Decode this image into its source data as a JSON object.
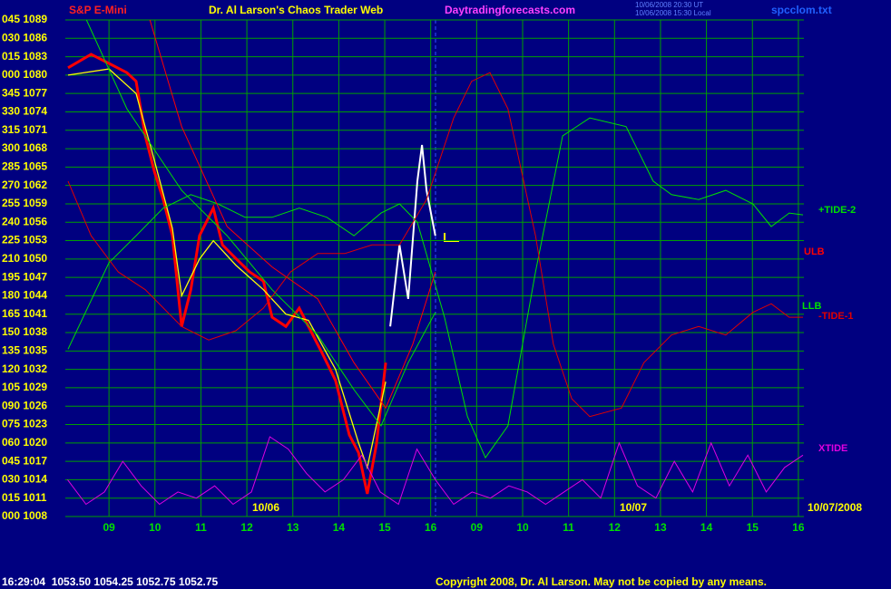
{
  "chart_data": {
    "type": "line",
    "header": {
      "symbol": "S&P E-Mini",
      "title": "Dr. Al Larson's Chaos Trader Web",
      "site": "Daytradingforecasts.com",
      "time_ut": "10/06/2008 20:30 UT",
      "time_local": "10/06/2008 15:30 Local",
      "file": "spcclom.txt"
    },
    "footer": {
      "status": "16:29:04  1053.50 1054.25 1052.75 1052.75",
      "copyright": "Copyright 2008, Dr. Al Larson. May not be copied by any means."
    },
    "annotations": [
      "10/06",
      "10/07",
      "10/07/2008"
    ],
    "grid": true,
    "xlim": [
      -0.95,
      15.12
    ],
    "xticks": [
      {
        "value": 0,
        "label": "09"
      },
      {
        "value": 1,
        "label": "10"
      },
      {
        "value": 2,
        "label": "11"
      },
      {
        "value": 3,
        "label": "12"
      },
      {
        "value": 4,
        "label": "13"
      },
      {
        "value": 5,
        "label": "14"
      },
      {
        "value": 6,
        "label": "15"
      },
      {
        "value": 7,
        "label": "16"
      },
      {
        "value": 8,
        "label": "09"
      },
      {
        "value": 9,
        "label": "10"
      },
      {
        "value": 10,
        "label": "11"
      },
      {
        "value": 11,
        "label": "12"
      },
      {
        "value": 12,
        "label": "13"
      },
      {
        "value": 13,
        "label": "14"
      },
      {
        "value": 14,
        "label": "15"
      },
      {
        "value": 15,
        "label": "16"
      }
    ],
    "ylim": [
      1008,
      1089
    ],
    "yticks": [
      {
        "value": 1008,
        "label": "000 1008"
      },
      {
        "value": 1011,
        "label": "015 1011"
      },
      {
        "value": 1014,
        "label": "030 1014"
      },
      {
        "value": 1017,
        "label": "045 1017"
      },
      {
        "value": 1020,
        "label": "060 1020"
      },
      {
        "value": 1023,
        "label": "075 1023"
      },
      {
        "value": 1026,
        "label": "090 1026"
      },
      {
        "value": 1029,
        "label": "105 1029"
      },
      {
        "value": 1032,
        "label": "120 1032"
      },
      {
        "value": 1035,
        "label": "135 1035"
      },
      {
        "value": 1038,
        "label": "150 1038"
      },
      {
        "value": 1041,
        "label": "165 1041"
      },
      {
        "value": 1044,
        "label": "180 1044"
      },
      {
        "value": 1047,
        "label": "195 1047"
      },
      {
        "value": 1050,
        "label": "210 1050"
      },
      {
        "value": 1053,
        "label": "225 1053"
      },
      {
        "value": 1056,
        "label": "240 1056"
      },
      {
        "value": 1059,
        "label": "255 1059"
      },
      {
        "value": 1062,
        "label": "270 1062"
      },
      {
        "value": 1065,
        "label": "285 1065"
      },
      {
        "value": 1068,
        "label": "300 1068"
      },
      {
        "value": 1071,
        "label": "315 1071"
      },
      {
        "value": 1074,
        "label": "330 1074"
      },
      {
        "value": 1077,
        "label": "345 1077"
      },
      {
        "value": 1080,
        "label": "000 1080"
      },
      {
        "value": 1083,
        "label": "015 1083"
      },
      {
        "value": 1086,
        "label": "030 1086"
      },
      {
        "value": 1089,
        "label": "045 1089"
      }
    ],
    "series": [
      {
        "color": "#ff0000",
        "x": [
          -0.89,
          -0.39,
          0,
          0.39,
          0.59,
          0.79,
          0.99,
          1.18,
          1.38,
          1.58,
          1.78,
          1.97,
          2.27,
          2.47,
          2.76,
          3.06,
          3.36,
          3.55,
          3.85,
          4.14,
          4.34,
          4.64,
          4.93,
          5.23,
          5.43,
          5.62,
          5.82,
          6.02
        ],
        "values": [
          1081.2,
          1083.4,
          1081.9,
          1080.4,
          1079.0,
          1070.1,
          1064.2,
          1059.7,
          1053.8,
          1039.0,
          1045.0,
          1053.8,
          1058.3,
          1052.3,
          1050.1,
          1047.9,
          1046.4,
          1040.5,
          1039.0,
          1042.0,
          1039.0,
          1034.6,
          1030.2,
          1021.3,
          1018.4,
          1011.7,
          1019.8,
          1033.1
        ]
      },
      {
        "color": "#ffff00",
        "x": [
          -0.89,
          0,
          0.59,
          0.99,
          1.38,
          1.58,
          1.97,
          2.27,
          2.76,
          3.36,
          3.85,
          4.34,
          4.93,
          5.43,
          5.62,
          6.02
        ],
        "values": [
          1080,
          1081,
          1077,
          1066,
          1055,
          1044,
          1050,
          1053,
          1049,
          1045,
          1041,
          1040,
          1032,
          1020,
          1016,
          1030
        ]
      },
      {
        "color": "#ffffff",
        "x": [
          6.12,
          6.32,
          6.51,
          6.71,
          6.81,
          6.91,
          7.1
        ],
        "values": [
          1039.0,
          1052.3,
          1043.5,
          1062.7,
          1068.6,
          1061.2,
          1053.8
        ]
      },
      {
        "name": "+TIDE-2",
        "color": "#00e000",
        "x": [
          -0.89,
          0,
          0.59,
          1.18,
          1.78,
          2.37,
          2.96,
          3.55,
          4.14,
          4.74,
          5.33,
          5.92,
          6.32,
          6.71,
          7.3,
          7.8,
          8.19,
          8.68,
          9.28,
          9.87,
          10.46,
          11.25,
          11.84,
          12.24,
          12.83,
          13.42,
          14.01,
          14.41,
          14.8,
          15.1
        ],
        "values": [
          1035.3,
          1049.4,
          1053.8,
          1058.3,
          1060.5,
          1059.0,
          1056.8,
          1056.8,
          1058.3,
          1056.8,
          1053.8,
          1057.5,
          1059.0,
          1056.0,
          1040.5,
          1024.3,
          1017.6,
          1022.8,
          1047.9,
          1070.1,
          1073.0,
          1071.6,
          1062.7,
          1060.5,
          1059.7,
          1061.2,
          1059.0,
          1055.3,
          1057.5,
          1057.2
        ]
      },
      {
        "name": "ULB",
        "color": "#ff0000",
        "x": [
          0.89,
          1.58,
          2.57,
          3.55,
          4.54,
          5.33,
          6.02,
          6.61,
          7.1
        ],
        "values": [
          1089,
          1071.6,
          1055.3,
          1048.7,
          1043.5,
          1033.1,
          1025.7,
          1036.1,
          1047.9
        ]
      },
      {
        "name": "LLB",
        "color": "#00e000",
        "x": [
          -0.49,
          0.39,
          1.58,
          2.57,
          3.55,
          4.54,
          5.33,
          5.92,
          6.51,
          7.1
        ],
        "values": [
          1089,
          1074.5,
          1061.2,
          1053.8,
          1045.0,
          1037.6,
          1028.7,
          1022.8,
          1033.1,
          1041.3
        ]
      },
      {
        "name": "-TIDE-1",
        "color": "#e00000",
        "x": [
          -0.89,
          -0.39,
          0.2,
          0.79,
          1.58,
          2.17,
          2.76,
          3.36,
          3.95,
          4.54,
          5.13,
          5.72,
          6.32,
          6.91,
          7.5,
          7.89,
          8.29,
          8.68,
          9.28,
          9.67,
          10.07,
          10.46,
          11.15,
          11.64,
          12.24,
          12.83,
          13.42,
          14.01,
          14.41,
          14.8,
          15.1
        ],
        "values": [
          1062.7,
          1053.8,
          1047.9,
          1045.0,
          1039.0,
          1036.8,
          1038.3,
          1042.0,
          1047.9,
          1050.9,
          1050.9,
          1052.3,
          1052.3,
          1059.7,
          1073.0,
          1079.0,
          1080.4,
          1074.5,
          1053.8,
          1036.1,
          1027.2,
          1024.3,
          1025.7,
          1033.1,
          1037.6,
          1039.0,
          1037.6,
          1041.3,
          1042.7,
          1040.5,
          1040.5
        ]
      },
      {
        "name": "XTIDE",
        "color": "#e000e0",
        "x": [
          -0.9,
          -0.5,
          -0.1,
          0.3,
          0.7,
          1.1,
          1.5,
          1.9,
          2.3,
          2.7,
          3.1,
          3.5,
          3.9,
          4.3,
          4.7,
          5.1,
          5.5,
          5.9,
          6.3,
          6.7,
          7.1,
          7.5,
          7.9,
          8.3,
          8.7,
          9.1,
          9.5,
          9.9,
          10.3,
          10.7,
          11.1,
          11.5,
          11.9,
          12.3,
          12.7,
          13.1,
          13.5,
          13.9,
          14.3,
          14.7,
          15.1
        ],
        "values": [
          1014,
          1010,
          1012,
          1017,
          1013,
          1010,
          1012,
          1011,
          1013,
          1010,
          1012,
          1021,
          1019,
          1015,
          1012,
          1014,
          1018,
          1012,
          1010,
          1019,
          1014,
          1010,
          1012,
          1011,
          1013,
          1012,
          1010,
          1012,
          1014,
          1011,
          1020,
          1013,
          1011,
          1017,
          1012,
          1020,
          1013,
          1018,
          1012,
          1016,
          1018
        ]
      }
    ]
  }
}
